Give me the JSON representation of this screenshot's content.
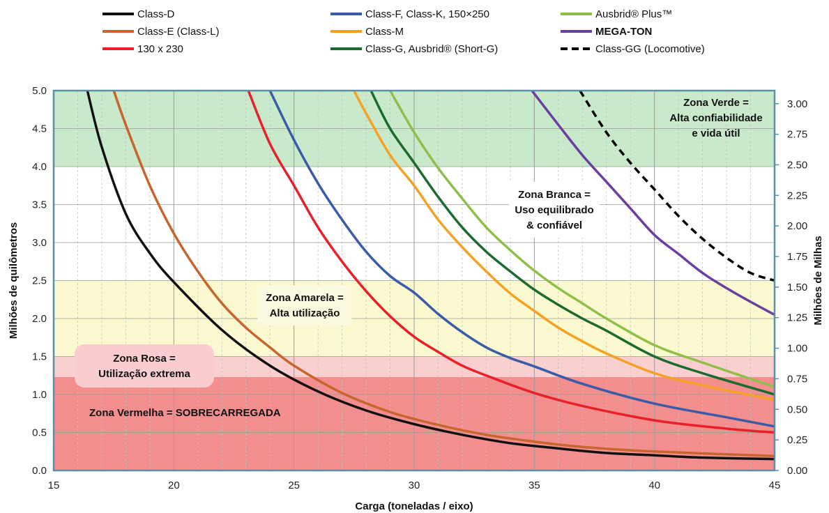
{
  "chart_data": {
    "type": "line",
    "xlabel": "Carga (toneladas / eixo)",
    "ylabel": "Milhões de quilômetros",
    "y2label": "Milhões de Milhas",
    "xlim": [
      15,
      45
    ],
    "ylim": [
      0,
      5
    ],
    "y2lim": [
      0,
      3.107
    ],
    "x_ticks": [
      15,
      20,
      25,
      30,
      35,
      40,
      45
    ],
    "y_ticks": [
      "0.0",
      "0.5",
      "1.0",
      "1.5",
      "2.0",
      "2.5",
      "3.0",
      "3.5",
      "4.0",
      "4.5",
      "5.0"
    ],
    "y2_ticks": [
      "0.00",
      "0.25",
      "0.50",
      "0.75",
      "1.00",
      "1.25",
      "1.50",
      "1.75",
      "2.00",
      "2.25",
      "2.50",
      "2.75",
      "3.00"
    ],
    "grid": true,
    "legend_position": "top",
    "zones": [
      {
        "id": "red",
        "label": "Zona Vermelha  = SOBRECARREGADA",
        "ymin": 0,
        "ymax": 1.23,
        "color": "#f28e8e"
      },
      {
        "id": "pink",
        "label": "Zona Rosa = Utilização extrema",
        "ymin": 1.23,
        "ymax": 1.5,
        "color": "#f9cfcf"
      },
      {
        "id": "yellow",
        "label": "Zona Amarela = Alta utilização",
        "ymin": 1.5,
        "ymax": 2.5,
        "color": "#fbf9cf"
      },
      {
        "id": "white",
        "label": "Zona Branca = Uso equilibrado & confiável",
        "ymin": 2.5,
        "ymax": 4.0,
        "color": "#ffffff"
      },
      {
        "id": "green",
        "label": "Zona Verde = Alta confiabilidade e vida útil",
        "ymin": 4.0,
        "ymax": 5.0,
        "color": "#c9e9cb"
      }
    ],
    "zone_labels": {
      "verde": [
        "Zona Verde =",
        "Alta confiabilidade",
        "e vida útil"
      ],
      "branca": [
        "Zona Branca =",
        "Uso equilibrado",
        "& confiável"
      ],
      "amarela": [
        "Zona Amarela =",
        "Alta utilização"
      ],
      "rosa": [
        "Zona Rosa =",
        "Utilização extrema"
      ],
      "vermelha": [
        "Zona Vermelha  = SOBRECARREGADA"
      ]
    },
    "series": [
      {
        "name": "Class-D",
        "color": "#111111",
        "dashed": false,
        "x": [
          16.4,
          17,
          18,
          19,
          20,
          22,
          24,
          26,
          28,
          30,
          32,
          34,
          36,
          38,
          40,
          42,
          45
        ],
        "y": [
          5.0,
          4.26,
          3.38,
          2.86,
          2.48,
          1.85,
          1.38,
          1.04,
          0.79,
          0.61,
          0.47,
          0.36,
          0.29,
          0.23,
          0.2,
          0.17,
          0.15
        ]
      },
      {
        "name": "Class-E (Class-L)",
        "color": "#c8642d",
        "dashed": false,
        "x": [
          17.5,
          18,
          19,
          20,
          21,
          22,
          23,
          24,
          25,
          27,
          29,
          31,
          33,
          35,
          37,
          40,
          45
        ],
        "y": [
          5.0,
          4.55,
          3.75,
          3.12,
          2.62,
          2.2,
          1.88,
          1.62,
          1.38,
          1.02,
          0.77,
          0.6,
          0.47,
          0.38,
          0.31,
          0.25,
          0.19
        ]
      },
      {
        "name": "130 x 230",
        "color": "#e8202a",
        "dashed": false,
        "x": [
          23.1,
          24,
          25,
          26,
          27,
          28,
          29,
          30,
          31,
          32,
          33,
          35,
          37,
          40,
          43,
          45
        ],
        "y": [
          5.0,
          4.3,
          3.75,
          3.2,
          2.75,
          2.36,
          2.03,
          1.76,
          1.56,
          1.38,
          1.25,
          1.02,
          0.85,
          0.66,
          0.55,
          0.5
        ]
      },
      {
        "name": "Class-F, Class-K, 150×250",
        "color": "#3a5ba8",
        "dashed": false,
        "x": [
          24.0,
          25,
          26,
          27,
          28,
          29,
          30,
          31,
          32,
          33,
          34,
          35,
          37,
          40,
          43,
          45
        ],
        "y": [
          5.0,
          4.35,
          3.78,
          3.3,
          2.88,
          2.56,
          2.34,
          2.06,
          1.82,
          1.62,
          1.48,
          1.37,
          1.14,
          0.88,
          0.7,
          0.58
        ]
      },
      {
        "name": "Class-M",
        "color": "#f4a124",
        "dashed": false,
        "x": [
          27.5,
          28,
          29,
          30,
          31,
          32,
          33,
          34,
          35,
          36,
          37,
          38,
          40,
          42,
          45
        ],
        "y": [
          5.0,
          4.7,
          4.15,
          3.75,
          3.3,
          2.94,
          2.62,
          2.33,
          2.1,
          1.88,
          1.7,
          1.54,
          1.28,
          1.12,
          0.93
        ]
      },
      {
        "name": "Class-G, Ausbrid® (Short-G)",
        "color": "#1c6b2e",
        "dashed": false,
        "x": [
          28.2,
          29,
          30,
          31,
          32,
          33,
          34,
          35,
          36,
          37,
          38,
          40,
          42,
          45
        ],
        "y": [
          5.0,
          4.5,
          4.05,
          3.6,
          3.2,
          2.88,
          2.62,
          2.38,
          2.18,
          2.0,
          1.84,
          1.5,
          1.28,
          1.0
        ]
      },
      {
        "name": "Ausbrid® Plus™",
        "color": "#8fbf4a",
        "dashed": false,
        "x": [
          29.0,
          30,
          31,
          32,
          33,
          34,
          35,
          36,
          37,
          38,
          40,
          42,
          45
        ],
        "y": [
          5.0,
          4.45,
          3.98,
          3.58,
          3.2,
          2.9,
          2.63,
          2.4,
          2.2,
          2.0,
          1.65,
          1.42,
          1.1
        ]
      },
      {
        "name": "MEGA-TON",
        "color": "#6b3fa0",
        "dashed": false,
        "x": [
          34.9,
          36,
          37,
          38,
          39,
          40,
          41,
          42,
          43,
          44,
          45
        ],
        "y": [
          5.0,
          4.55,
          4.15,
          3.8,
          3.45,
          3.1,
          2.85,
          2.6,
          2.4,
          2.22,
          2.05
        ]
      },
      {
        "name": "Class-GG  (Locomotive)",
        "color": "#000000",
        "dashed": true,
        "x": [
          36.9,
          38,
          39,
          40,
          41,
          42,
          43,
          44,
          45
        ],
        "y": [
          5.0,
          4.45,
          4.05,
          3.7,
          3.35,
          3.05,
          2.8,
          2.6,
          2.5
        ]
      }
    ]
  }
}
